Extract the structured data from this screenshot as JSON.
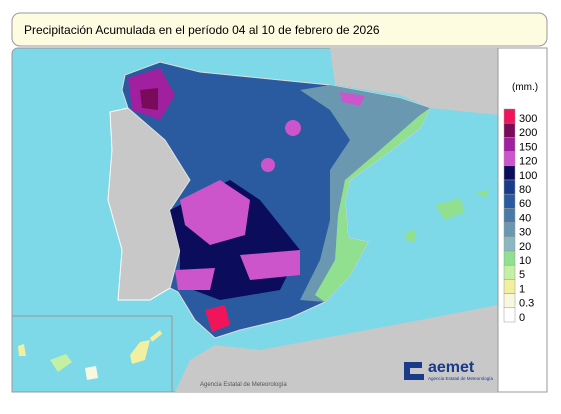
{
  "title": "Precipitación Acumulada en el período 04 al 10 de febrero de 2026",
  "legend": {
    "unit": "(mm.)",
    "items": [
      {
        "label": "300",
        "color": "#f0145a"
      },
      {
        "label": "200",
        "color": "#7a0a5a"
      },
      {
        "label": "150",
        "color": "#a020a0"
      },
      {
        "label": "120",
        "color": "#cc55cc"
      },
      {
        "label": "100",
        "color": "#0c0c5c"
      },
      {
        "label": "80",
        "color": "#1a3a8a"
      },
      {
        "label": "60",
        "color": "#2a5aa0"
      },
      {
        "label": "40",
        "color": "#4a7aa8"
      },
      {
        "label": "30",
        "color": "#6a98b0"
      },
      {
        "label": "20",
        "color": "#8ab8c0"
      },
      {
        "label": "10",
        "color": "#90e090"
      },
      {
        "label": "5",
        "color": "#c4f0a4"
      },
      {
        "label": "1",
        "color": "#f0f0a0"
      },
      {
        "label": "0.3",
        "color": "#f8f8e0"
      },
      {
        "label": "0",
        "color": "#ffffff"
      }
    ]
  },
  "logo": {
    "name": "aemet",
    "subtitle": "Agencia Estatal de Meteorología"
  },
  "footer": "Agencia Estatal de Meteorología"
}
